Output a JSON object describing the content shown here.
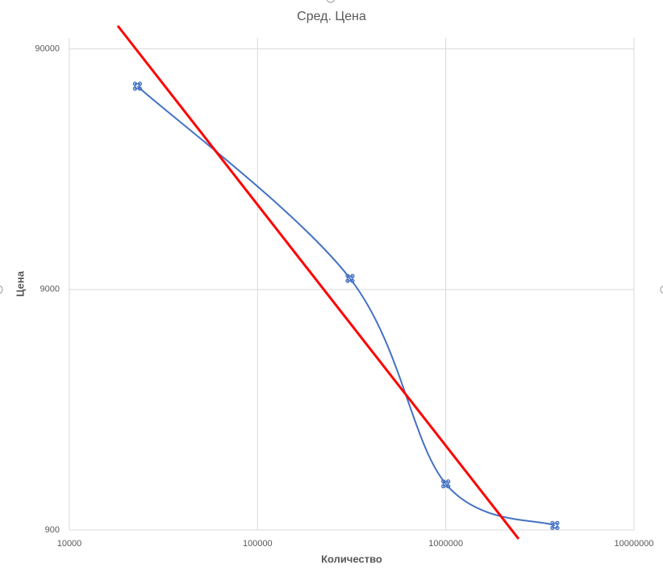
{
  "chart_data": {
    "type": "scatter",
    "title": "Сред. Цена",
    "x_label": "Количество",
    "y_label": "Цена",
    "x": [
      23000,
      310000,
      1000000,
      3800000
    ],
    "series": [
      {
        "color": "#4472c4",
        "values": [
          63000,
          10000,
          1400,
          940
        ]
      }
    ],
    "xlim": [
      10000,
      10000000
    ],
    "xticks": [
      10000,
      100000,
      1000000,
      10000000
    ],
    "ylim": [
      900,
      100000
    ],
    "yticks": [
      900,
      9000,
      90000
    ],
    "log_x": true,
    "log_y": true,
    "grid": true,
    "smooth": true
  }
}
